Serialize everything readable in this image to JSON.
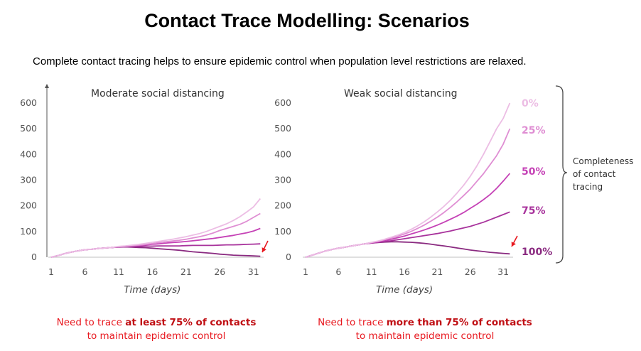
{
  "page": {
    "title": "Contact Trace Modelling: Scenarios",
    "subtitle": "Complete contact tracing helps to ensure epidemic control when population level restrictions are relaxed."
  },
  "brace_label": [
    "Completeness",
    "of contact",
    "tracing"
  ],
  "notes": [
    {
      "prefix": "Need to trace ",
      "emphasis": "at least 75% of contacts",
      "line2": "to maintain epidemic control"
    },
    {
      "prefix": "Need to trace ",
      "emphasis": "more than 75% of contacts",
      "line2": "to maintain epidemic control"
    }
  ],
  "colors": {
    "s0": "#ecbde4",
    "s25": "#df8ed3",
    "s50": "#c542b6",
    "s75": "#a8339c",
    "s100": "#8a2a80",
    "red_text": "#e8181f",
    "arrow": "#e8181f"
  },
  "chart_data": [
    {
      "type": "line",
      "title": "Moderate social distancing",
      "xlabel": "Time (days)",
      "ylabel": "",
      "xticks": [
        1,
        6,
        11,
        16,
        21,
        26,
        31
      ],
      "yticks": [
        0,
        100,
        200,
        300,
        400,
        500,
        600
      ],
      "xlim": [
        1,
        32.5
      ],
      "ylim": [
        0,
        600
      ],
      "x": [
        1,
        2,
        3,
        4,
        5,
        6,
        7,
        8,
        9,
        10,
        11,
        12,
        13,
        14,
        15,
        16,
        17,
        18,
        19,
        20,
        21,
        22,
        23,
        24,
        25,
        26,
        27,
        28,
        29,
        30,
        31,
        32
      ],
      "series": [
        {
          "name": "0%",
          "values": [
            0,
            6,
            14,
            20,
            25,
            29,
            31,
            34,
            36,
            38,
            42,
            44,
            47,
            50,
            54,
            58,
            62,
            66,
            70,
            75,
            80,
            86,
            92,
            100,
            110,
            120,
            130,
            143,
            158,
            176,
            196,
            228
          ]
        },
        {
          "name": "25%",
          "values": [
            0,
            6,
            14,
            20,
            25,
            29,
            31,
            34,
            36,
            38,
            41,
            43,
            45,
            47,
            50,
            53,
            57,
            60,
            63,
            66,
            70,
            75,
            80,
            86,
            94,
            104,
            112,
            120,
            128,
            140,
            155,
            170
          ]
        },
        {
          "name": "50%",
          "values": [
            0,
            6,
            14,
            20,
            25,
            29,
            31,
            34,
            36,
            38,
            40,
            42,
            44,
            46,
            48,
            50,
            52,
            55,
            57,
            59,
            61,
            64,
            67,
            70,
            73,
            77,
            81,
            85,
            90,
            95,
            102,
            112
          ]
        },
        {
          "name": "75%",
          "values": [
            0,
            6,
            14,
            20,
            25,
            29,
            31,
            34,
            36,
            38,
            40,
            41,
            42,
            42,
            43,
            43,
            44,
            44,
            44,
            44,
            45,
            46,
            46,
            46,
            46,
            47,
            48,
            48,
            49,
            50,
            51,
            52
          ]
        },
        {
          "name": "100%",
          "values": [
            0,
            6,
            14,
            20,
            25,
            29,
            31,
            34,
            36,
            38,
            39,
            40,
            39,
            38,
            37,
            35,
            33,
            31,
            29,
            27,
            24,
            21,
            19,
            17,
            15,
            12,
            10,
            8,
            7,
            6,
            5,
            4
          ]
        }
      ]
    },
    {
      "type": "line",
      "title": "Weak social distancing",
      "xlabel": "Time (days)",
      "ylabel": "",
      "xticks": [
        1,
        6,
        11,
        16,
        21,
        26,
        31
      ],
      "yticks": [
        0,
        100,
        200,
        300,
        400,
        500,
        600
      ],
      "xlim": [
        1,
        32.5
      ],
      "ylim": [
        0,
        600
      ],
      "x": [
        1,
        2,
        3,
        4,
        5,
        6,
        7,
        8,
        9,
        10,
        11,
        12,
        13,
        14,
        15,
        16,
        17,
        18,
        19,
        20,
        21,
        22,
        23,
        24,
        25,
        26,
        27,
        28,
        29,
        30,
        31,
        32
      ],
      "series": [
        {
          "name": "0%",
          "values": [
            0,
            8,
            16,
            24,
            30,
            35,
            39,
            44,
            48,
            52,
            58,
            63,
            70,
            78,
            86,
            96,
            108,
            122,
            138,
            156,
            176,
            198,
            222,
            250,
            280,
            315,
            355,
            400,
            450,
            500,
            540,
            600
          ]
        },
        {
          "name": "25%",
          "values": [
            0,
            8,
            16,
            24,
            30,
            35,
            39,
            44,
            48,
            52,
            57,
            62,
            68,
            75,
            82,
            90,
            100,
            112,
            125,
            140,
            156,
            174,
            194,
            216,
            240,
            265,
            295,
            325,
            360,
            395,
            440,
            500
          ]
        },
        {
          "name": "50%",
          "values": [
            0,
            8,
            16,
            24,
            30,
            35,
            39,
            44,
            48,
            52,
            56,
            60,
            65,
            70,
            76,
            82,
            90,
            98,
            106,
            115,
            125,
            136,
            148,
            160,
            174,
            190,
            206,
            224,
            244,
            268,
            296,
            326
          ]
        },
        {
          "name": "75%",
          "values": [
            0,
            8,
            16,
            24,
            30,
            35,
            39,
            44,
            48,
            52,
            55,
            58,
            61,
            64,
            68,
            72,
            76,
            80,
            84,
            88,
            92,
            97,
            102,
            108,
            114,
            120,
            128,
            136,
            146,
            156,
            166,
            176
          ]
        },
        {
          "name": "100%",
          "values": [
            0,
            8,
            16,
            24,
            30,
            35,
            39,
            44,
            48,
            52,
            55,
            57,
            59,
            60,
            60,
            59,
            58,
            56,
            54,
            51,
            47,
            44,
            40,
            36,
            32,
            28,
            25,
            22,
            19,
            17,
            15,
            13
          ]
        }
      ]
    }
  ]
}
